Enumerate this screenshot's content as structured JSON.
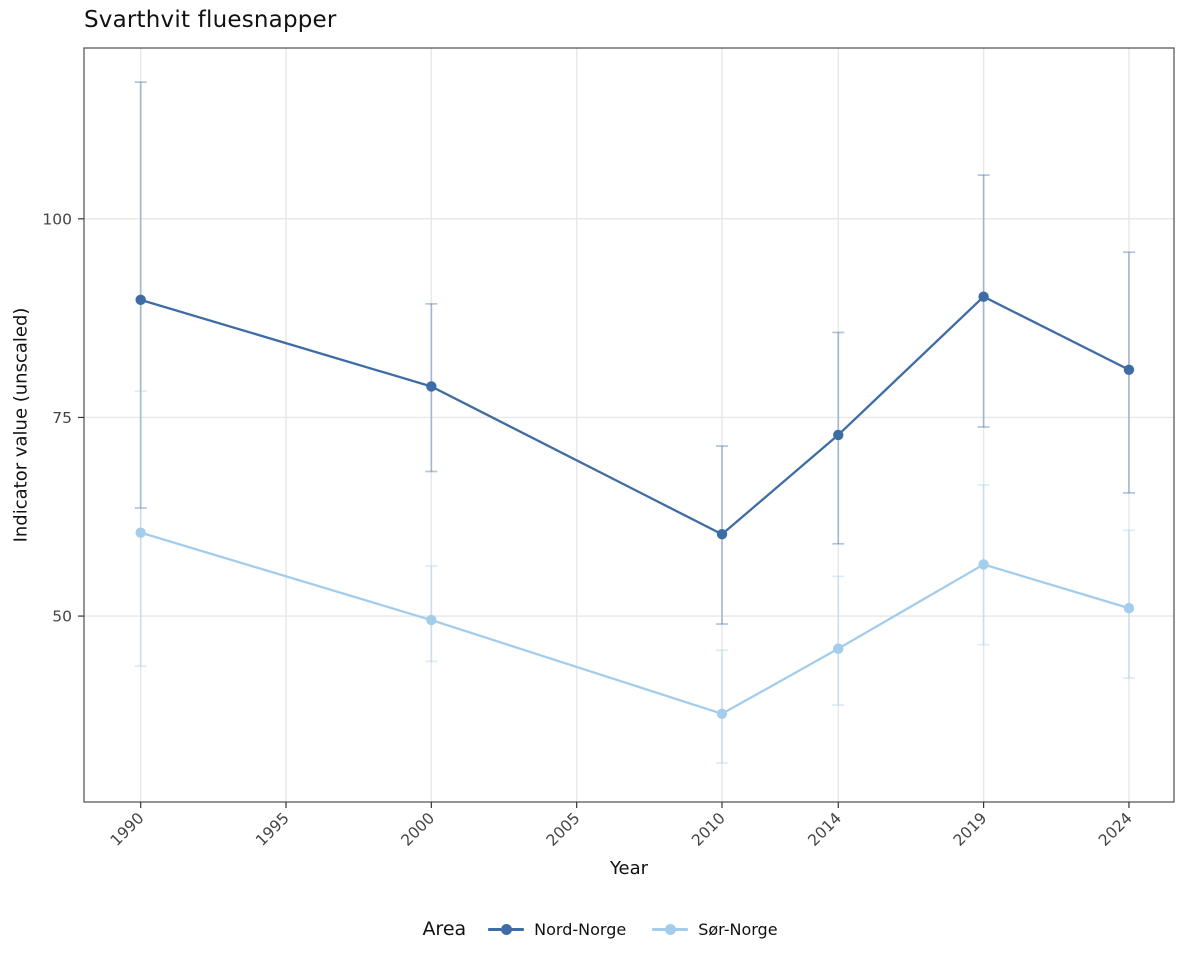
{
  "page": {
    "title": "Svarthvit fluesnapper"
  },
  "chart_data": {
    "type": "line",
    "title": "Svarthvit fluesnapper",
    "xlabel": "Year",
    "ylabel": "Indicator value (unscaled)",
    "legend_title": "Area",
    "legend_position": "bottom",
    "grid": true,
    "x_ticks": [
      1990,
      1995,
      2000,
      2005,
      2010,
      2014,
      2019,
      2024
    ],
    "y_ticks": [
      50,
      75,
      100
    ],
    "xlim": [
      1988.05,
      2025.55
    ],
    "ylim": [
      26.6,
      121.5
    ],
    "error_bar_opacity": 0.4,
    "series": [
      {
        "name": "Nord-Norge",
        "color": "#3e6da5",
        "x": [
          1990,
          2000,
          2010,
          2014,
          2019,
          2024
        ],
        "values": [
          89.8,
          78.9,
          60.3,
          72.8,
          90.2,
          81.0
        ],
        "ci_low": [
          63.6,
          68.2,
          49.0,
          59.1,
          73.8,
          65.5
        ],
        "ci_high": [
          117.2,
          89.3,
          71.4,
          85.7,
          105.5,
          95.8
        ]
      },
      {
        "name": "Sør-Norge",
        "color": "#a4cceb",
        "x": [
          1990,
          2000,
          2010,
          2014,
          2019,
          2024
        ],
        "values": [
          60.5,
          49.5,
          37.7,
          45.9,
          56.5,
          51.0
        ],
        "ci_low": [
          43.7,
          44.3,
          31.5,
          38.8,
          46.4,
          42.2
        ],
        "ci_high": [
          78.3,
          56.3,
          45.7,
          55.0,
          66.5,
          60.8
        ]
      }
    ],
    "panel_style": {
      "border_color": "#4d4d4d",
      "grid_color": "#e7e7e7",
      "tick_color": "#333333",
      "tick_label_color": "#444444"
    }
  }
}
